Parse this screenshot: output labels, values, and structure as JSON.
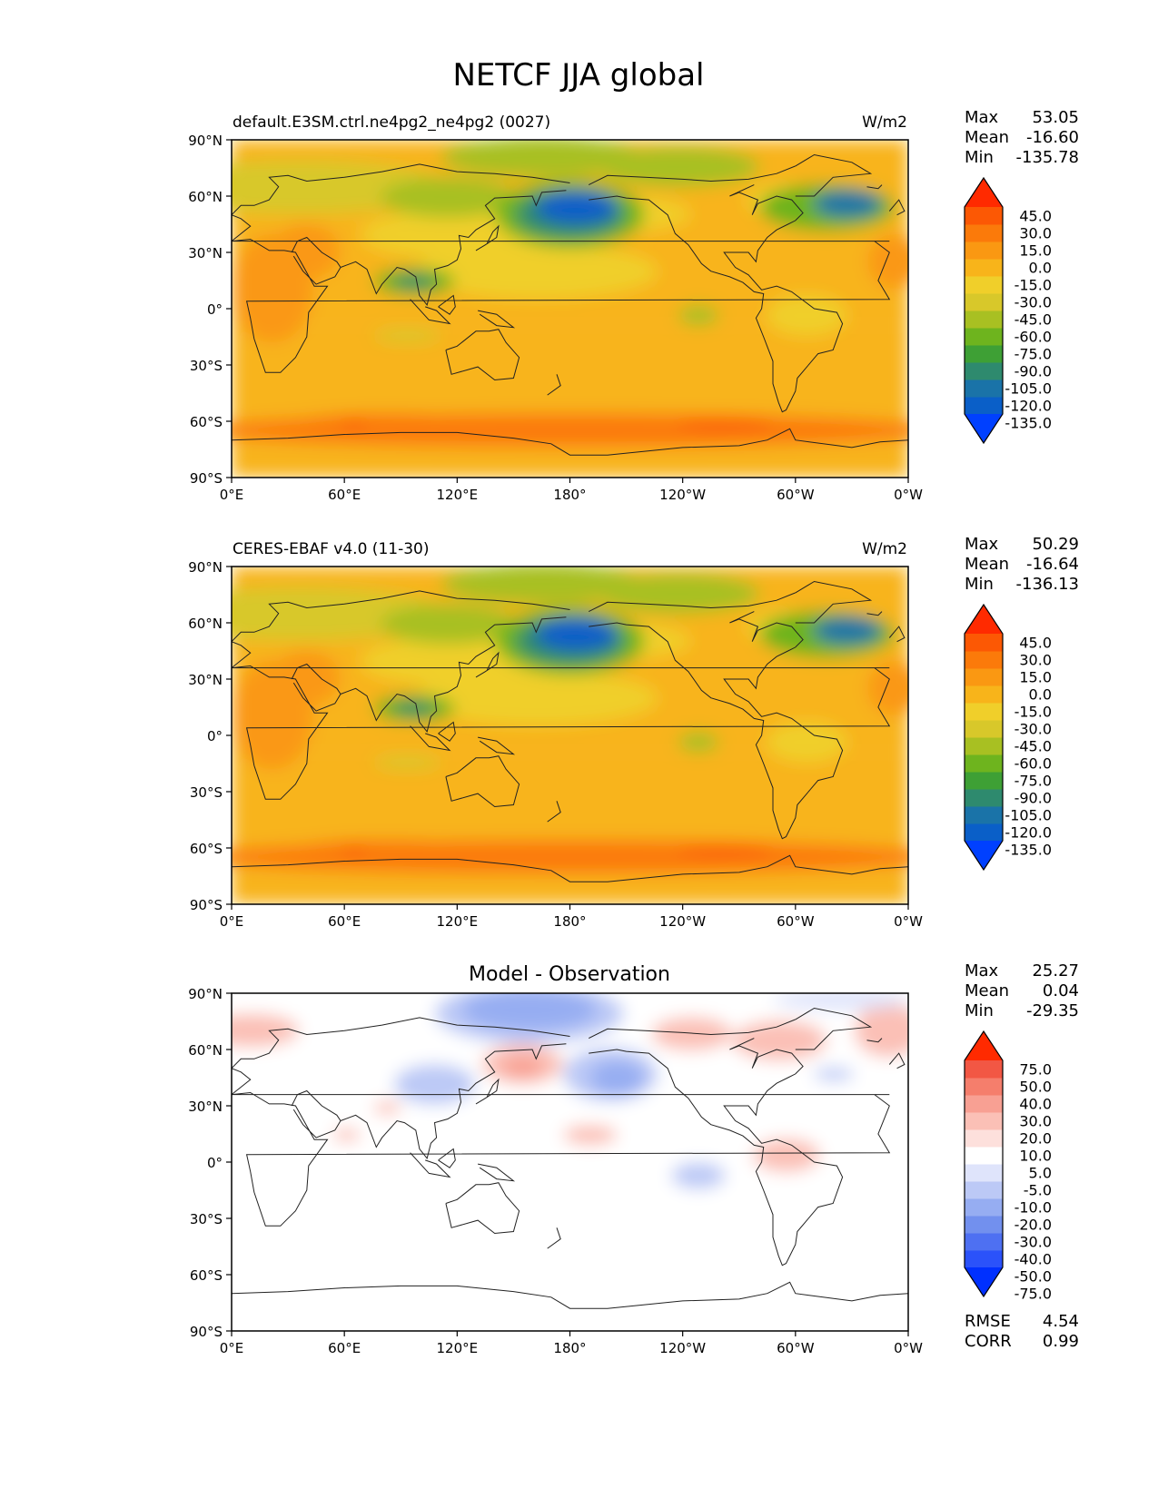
{
  "title": "NETCF JJA global",
  "lon_ticks": [
    "0°E",
    "60°E",
    "120°E",
    "180°",
    "120°W",
    "60°W",
    "0°W"
  ],
  "lat_ticks": [
    "90°N",
    "60°N",
    "30°N",
    "0°",
    "30°S",
    "60°S",
    "90°S"
  ],
  "stat_labels": {
    "max": "Max",
    "mean": "Mean",
    "min": "Min"
  },
  "colors": {
    "main_levels": [
      "#0040ff",
      "#0a5fc8",
      "#1a73a8",
      "#2e8a6e",
      "#3ea035",
      "#6eb41e",
      "#a8c022",
      "#d8c82a",
      "#f0cf2a",
      "#f8b41a",
      "#fa9812",
      "#fb7a0a",
      "#fc5804",
      "#ff2a00"
    ],
    "diff_levels": [
      "#0030ff",
      "#2b52fa",
      "#4e70f2",
      "#7290ee",
      "#96adf2",
      "#bcc9f6",
      "#dfe4fb",
      "#ffffff",
      "#fde0dc",
      "#fbc0b6",
      "#f8a093",
      "#f57e6c",
      "#f25744",
      "#ff2a00"
    ]
  },
  "panels": [
    {
      "left_title": "default.E3SM.ctrl.ne4pg2_ne4pg2 (0027)",
      "center_title": "",
      "units": "W/m2",
      "stats": {
        "max": "53.05",
        "mean": "-16.60",
        "min": "-135.78"
      },
      "colorbar_ticks": [
        "45.0",
        "30.0",
        "15.0",
        "0.0",
        "-15.0",
        "-30.0",
        "-45.0",
        "-60.0",
        "-75.0",
        "-90.0",
        "-105.0",
        "-120.0",
        "-135.0"
      ],
      "type": "main"
    },
    {
      "left_title": "CERES-EBAF v4.0 (11-30)",
      "center_title": "",
      "units": "W/m2",
      "stats": {
        "max": "50.29",
        "mean": "-16.64",
        "min": "-136.13"
      },
      "colorbar_ticks": [
        "45.0",
        "30.0",
        "15.0",
        "0.0",
        "-15.0",
        "-30.0",
        "-45.0",
        "-60.0",
        "-75.0",
        "-90.0",
        "-105.0",
        "-120.0",
        "-135.0"
      ],
      "type": "main"
    },
    {
      "left_title": "",
      "center_title": "Model - Observation",
      "units": "",
      "stats": {
        "max": "25.27",
        "mean": "0.04",
        "min": "-29.35"
      },
      "colorbar_ticks": [
        "75.0",
        "50.0",
        "40.0",
        "30.0",
        "20.0",
        "10.0",
        "5.0",
        "-5.0",
        "-10.0",
        "-20.0",
        "-30.0",
        "-40.0",
        "-50.0",
        "-75.0"
      ],
      "type": "diff",
      "extra_stats": [
        {
          "label": "RMSE",
          "value": "4.54"
        },
        {
          "label": "CORR",
          "value": "0.99"
        }
      ]
    }
  ]
}
